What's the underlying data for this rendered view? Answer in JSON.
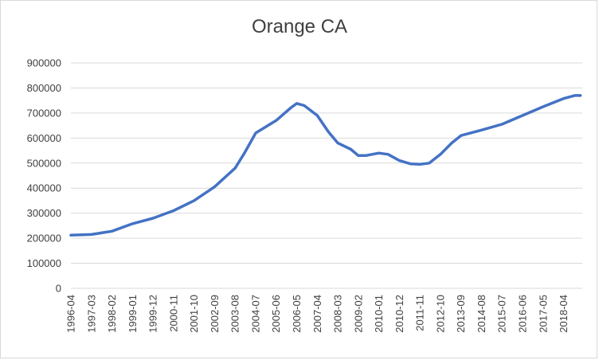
{
  "chart_data": {
    "type": "line",
    "title": "Orange CA",
    "xlabel": "",
    "ylabel": "",
    "ylim": [
      0,
      900000
    ],
    "yticks": [
      "0",
      "100000",
      "200000",
      "300000",
      "400000",
      "500000",
      "600000",
      "700000",
      "800000",
      "900000"
    ],
    "grid": true,
    "legend": "none",
    "series_color": "#4472c4",
    "x_tick_labels": [
      "1996-04",
      "1997-03",
      "1998-02",
      "1999-01",
      "1999-12",
      "2000-11",
      "2001-10",
      "2002-09",
      "2003-08",
      "2004-07",
      "2005-06",
      "2006-05",
      "2007-04",
      "2008-03",
      "2009-02",
      "2010-01",
      "2010-12",
      "2011-11",
      "2012-10",
      "2013-09",
      "2014-08",
      "2015-07",
      "2016-06",
      "2017-05",
      "2018-04"
    ],
    "series": [
      {
        "values": [
          {
            "x": "1996-04",
            "y": 212000
          },
          {
            "x": "1997-03",
            "y": 215000
          },
          {
            "x": "1998-02",
            "y": 228000
          },
          {
            "x": "1999-01",
            "y": 258000
          },
          {
            "x": "1999-12",
            "y": 280000
          },
          {
            "x": "2000-11",
            "y": 310000
          },
          {
            "x": "2001-10",
            "y": 350000
          },
          {
            "x": "2002-09",
            "y": 405000
          },
          {
            "x": "2003-08",
            "y": 480000
          },
          {
            "x": "2004-01",
            "y": 540000
          },
          {
            "x": "2004-07",
            "y": 620000
          },
          {
            "x": "2005-06",
            "y": 670000
          },
          {
            "x": "2006-02",
            "y": 722000
          },
          {
            "x": "2006-05",
            "y": 738000
          },
          {
            "x": "2006-09",
            "y": 730000
          },
          {
            "x": "2007-04",
            "y": 690000
          },
          {
            "x": "2007-10",
            "y": 625000
          },
          {
            "x": "2008-03",
            "y": 580000
          },
          {
            "x": "2008-10",
            "y": 555000
          },
          {
            "x": "2009-02",
            "y": 530000
          },
          {
            "x": "2009-06",
            "y": 530000
          },
          {
            "x": "2010-01",
            "y": 540000
          },
          {
            "x": "2010-06",
            "y": 535000
          },
          {
            "x": "2010-12",
            "y": 510000
          },
          {
            "x": "2011-06",
            "y": 497000
          },
          {
            "x": "2011-11",
            "y": 495000
          },
          {
            "x": "2012-04",
            "y": 500000
          },
          {
            "x": "2012-10",
            "y": 535000
          },
          {
            "x": "2013-04",
            "y": 580000
          },
          {
            "x": "2013-09",
            "y": 610000
          },
          {
            "x": "2014-08",
            "y": 632000
          },
          {
            "x": "2015-07",
            "y": 655000
          },
          {
            "x": "2016-06",
            "y": 690000
          },
          {
            "x": "2017-05",
            "y": 725000
          },
          {
            "x": "2018-04",
            "y": 758000
          },
          {
            "x": "2018-10",
            "y": 770000
          },
          {
            "x": "2019-01",
            "y": 770000
          }
        ]
      }
    ]
  }
}
